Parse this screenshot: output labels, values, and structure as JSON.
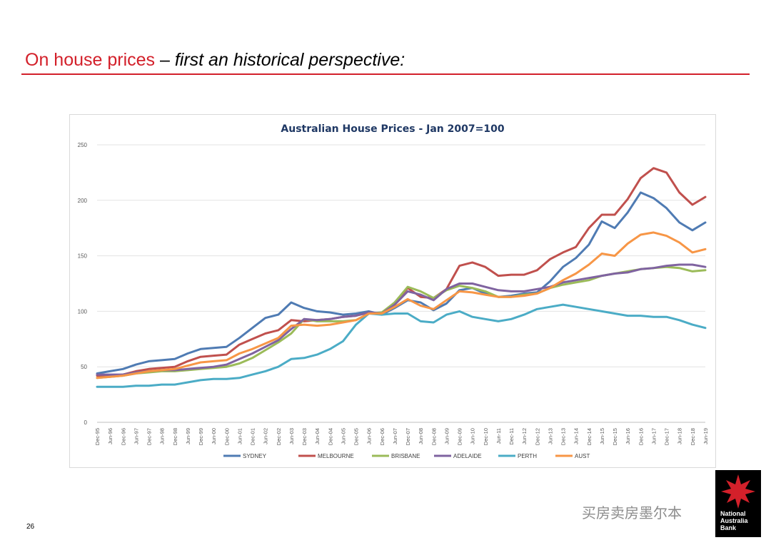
{
  "slide": {
    "title_red": "On house prices",
    "title_dash": " – ",
    "title_italic": "first an historical perspective:",
    "page_number": "26",
    "watermark": "买房卖房墨尔本",
    "logo_lines": [
      "National",
      "Australia",
      "Bank"
    ]
  },
  "colors": {
    "accent_red": "#d3202a",
    "SYDNEY": "#4f7bb3",
    "MELBOURNE": "#c0504d",
    "BRISBANE": "#9bbb59",
    "ADELAIDE": "#7f63a0",
    "PERTH": "#4bacc6",
    "AUST": "#f79646"
  },
  "chart_data": {
    "type": "line",
    "title": "Australian House Prices - Jan 2007=100",
    "xlabel": "",
    "ylabel": "",
    "ylim": [
      0,
      250
    ],
    "yticks": [
      0,
      50,
      100,
      150,
      200,
      250
    ],
    "grid": true,
    "legend_position": "bottom",
    "x": [
      "Dec-95",
      "Jun-96",
      "Dec-96",
      "Jun-97",
      "Dec-97",
      "Jun-98",
      "Dec-98",
      "Jun-99",
      "Dec-99",
      "Jun-00",
      "Dec-00",
      "Jun-01",
      "Dec-01",
      "Jun-02",
      "Dec-02",
      "Jun-03",
      "Dec-03",
      "Jun-04",
      "Dec-04",
      "Jun-05",
      "Dec-05",
      "Jun-06",
      "Dec-06",
      "Jun-07",
      "Dec-07",
      "Jun-08",
      "Dec-08",
      "Jun-09",
      "Dec-09",
      "Jun-10",
      "Dec-10",
      "Jun-11",
      "Dec-11",
      "Jun-12",
      "Dec-12",
      "Jun-13",
      "Dec-13",
      "Jun-14",
      "Dec-14",
      "Jun-15",
      "Dec-15",
      "Jun-16",
      "Dec-16",
      "Jun-17",
      "Dec-17",
      "Jun-18",
      "Dec-18",
      "Jun-19"
    ],
    "series": [
      {
        "name": "SYDNEY",
        "values": [
          44,
          46,
          48,
          52,
          55,
          56,
          57,
          62,
          66,
          67,
          68,
          76,
          85,
          94,
          97,
          108,
          103,
          100,
          99,
          97,
          98,
          100,
          97,
          103,
          110,
          108,
          101,
          107,
          119,
          121,
          116,
          113,
          114,
          116,
          117,
          127,
          140,
          148,
          160,
          181,
          175,
          189,
          207,
          202,
          193,
          180,
          173,
          180
        ]
      },
      {
        "name": "MELBOURNE",
        "values": [
          42,
          42,
          43,
          46,
          48,
          49,
          50,
          55,
          59,
          60,
          61,
          70,
          75,
          80,
          83,
          92,
          91,
          92,
          93,
          95,
          96,
          99,
          98,
          108,
          121,
          113,
          112,
          120,
          141,
          144,
          140,
          132,
          133,
          133,
          137,
          147,
          153,
          158,
          175,
          187,
          187,
          201,
          220,
          229,
          225,
          207,
          196,
          203
        ]
      },
      {
        "name": "BRISBANE",
        "values": [
          40,
          41,
          42,
          44,
          45,
          46,
          46,
          47,
          48,
          49,
          50,
          53,
          58,
          65,
          72,
          80,
          93,
          91,
          91,
          91,
          92,
          98,
          99,
          108,
          122,
          118,
          112,
          119,
          123,
          121,
          118,
          113,
          113,
          115,
          116,
          121,
          124,
          126,
          128,
          132,
          134,
          136,
          138,
          139,
          140,
          139,
          136,
          137
        ]
      },
      {
        "name": "ADELAIDE",
        "values": [
          43,
          43,
          43,
          45,
          46,
          47,
          47,
          48,
          49,
          50,
          52,
          57,
          62,
          68,
          74,
          84,
          93,
          92,
          93,
          95,
          96,
          99,
          98,
          106,
          118,
          115,
          110,
          120,
          125,
          125,
          122,
          119,
          118,
          118,
          120,
          122,
          126,
          128,
          130,
          132,
          134,
          135,
          138,
          139,
          141,
          142,
          142,
          140
        ]
      },
      {
        "name": "PERTH",
        "values": [
          32,
          32,
          32,
          33,
          33,
          34,
          34,
          36,
          38,
          39,
          39,
          40,
          43,
          46,
          50,
          57,
          58,
          61,
          66,
          73,
          88,
          98,
          97,
          98,
          98,
          91,
          90,
          97,
          100,
          95,
          93,
          91,
          93,
          97,
          102,
          104,
          106,
          104,
          102,
          100,
          98,
          96,
          96,
          95,
          95,
          92,
          88,
          85
        ]
      },
      {
        "name": "AUST",
        "values": [
          40,
          41,
          42,
          44,
          46,
          47,
          48,
          51,
          54,
          55,
          56,
          62,
          66,
          71,
          76,
          87,
          88,
          87,
          88,
          90,
          92,
          98,
          98,
          104,
          111,
          105,
          102,
          110,
          118,
          117,
          115,
          113,
          113,
          114,
          116,
          121,
          128,
          134,
          142,
          152,
          150,
          161,
          169,
          171,
          168,
          162,
          153,
          156
        ]
      }
    ]
  }
}
